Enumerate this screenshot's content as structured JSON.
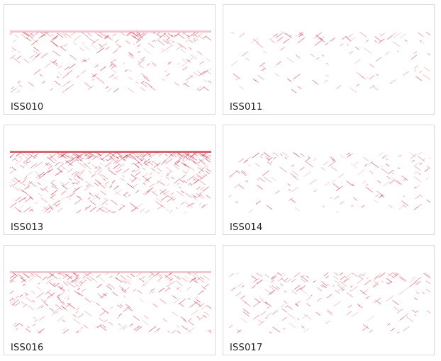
{
  "panels": [
    {
      "label": "ISS010"
    },
    {
      "label": "ISS011"
    },
    {
      "label": "ISS013"
    },
    {
      "label": "ISS014"
    },
    {
      "label": "ISS016"
    },
    {
      "label": "ISS017"
    }
  ]
}
